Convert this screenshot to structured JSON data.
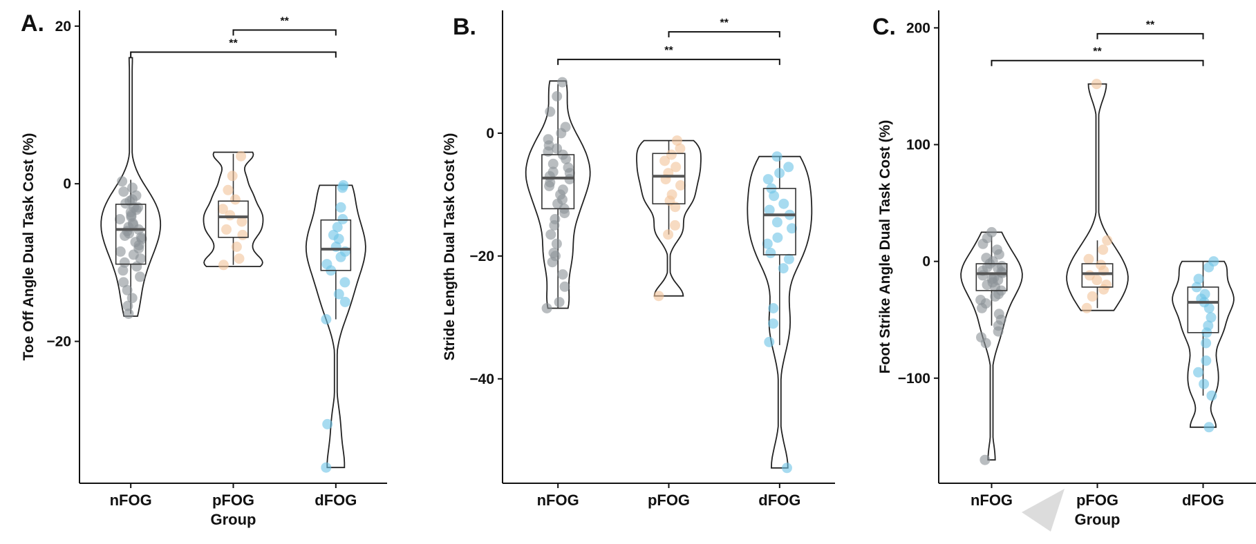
{
  "figure": {
    "description_title": ""
  },
  "chart_data": [
    {
      "panel": "A.",
      "type": "violin-box-strip",
      "title": "",
      "xlabel": "Group",
      "ylabel": "Toe Off Angle Dual Task Cost (%)",
      "ylim": [
        -38,
        22
      ],
      "yticks": [
        20,
        0,
        -20
      ],
      "ytick_labels": [
        "20",
        "0",
        "−20"
      ],
      "categories": [
        "nFOG",
        "pFOG",
        "dFOG"
      ],
      "colors": [
        "#8a9196",
        "#f2c39a",
        "#6cc3e6"
      ],
      "series": [
        {
          "name": "nFOG",
          "box": {
            "q1": -10.2,
            "median": -5.8,
            "q3": -2.6,
            "whisker_low": -16.5,
            "whisker_high": 0.5
          },
          "violin_min": -16.8,
          "violin_max": 16.0,
          "points": [
            -1.0,
            -1.5,
            -2.0,
            -2.2,
            -2.5,
            -3.0,
            -3.3,
            -3.6,
            -4.0,
            -4.2,
            -4.5,
            -5.0,
            -5.2,
            -5.5,
            -5.8,
            -6.0,
            -6.3,
            -6.6,
            -7.0,
            -7.4,
            -7.8,
            -8.2,
            -8.6,
            -9.0,
            -9.5,
            -10.0,
            -10.5,
            -11.0,
            -11.8,
            -12.5,
            -13.5,
            -14.5,
            -15.5,
            -16.5,
            -0.5,
            0.3,
            -3.0,
            -6.8
          ]
        },
        {
          "name": "pFOG",
          "box": {
            "q1": -6.8,
            "median": -4.2,
            "q3": -2.2,
            "whisker_low": -10.3,
            "whisker_high": 3.8
          },
          "violin_min": -10.5,
          "violin_max": 4.0,
          "points": [
            3.5,
            1.0,
            -0.8,
            -2.0,
            -3.2,
            -4.0,
            -4.8,
            -5.8,
            -6.5,
            -8.0,
            -9.5,
            -10.3
          ]
        },
        {
          "name": "dFOG",
          "box": {
            "q1": -11.0,
            "median": -8.3,
            "q3": -4.6,
            "whisker_low": -17.2,
            "whisker_high": -0.2
          },
          "violin_min": -36.0,
          "violin_max": -0.2,
          "points": [
            -0.2,
            -0.5,
            -3.0,
            -4.5,
            -5.5,
            -6.5,
            -7.0,
            -8.0,
            -8.6,
            -9.3,
            -10.2,
            -11.0,
            -12.5,
            -14.0,
            -15.0,
            -17.2,
            -30.5,
            -36.0
          ]
        }
      ],
      "significance": [
        {
          "from": "pFOG",
          "to": "dFOG",
          "label": "**",
          "y": 19.5
        },
        {
          "from": "nFOG",
          "to": "dFOG",
          "label": "**",
          "y": 16.7
        }
      ]
    },
    {
      "panel": "B.",
      "type": "violin-box-strip",
      "title": "",
      "xlabel": "",
      "ylabel": "Stride Length Dual Task Cost (%)",
      "ylim": [
        -57,
        20
      ],
      "yticks": [
        0,
        -20,
        -40
      ],
      "ytick_labels": [
        "0",
        "−20",
        "−40"
      ],
      "categories": [
        "nFOG",
        "pFOG",
        "dFOG"
      ],
      "colors": [
        "#8a9196",
        "#f2c39a",
        "#6cc3e6"
      ],
      "series": [
        {
          "name": "nFOG",
          "box": {
            "q1": -12.3,
            "median": -7.3,
            "q3": -3.5,
            "whisker_low": -28.5,
            "whisker_high": 8.0
          },
          "violin_min": -28.5,
          "violin_max": 8.5,
          "points": [
            8.3,
            6.0,
            3.5,
            1.0,
            0.0,
            -1.0,
            -2.0,
            -2.5,
            -3.0,
            -3.5,
            -4.2,
            -5.0,
            -5.6,
            -6.3,
            -7.0,
            -7.5,
            -8.0,
            -8.6,
            -9.2,
            -10.0,
            -10.8,
            -11.5,
            -12.3,
            -13.0,
            -14.0,
            -15.0,
            -16.5,
            -18.0,
            -19.5,
            -21.0,
            -23.0,
            -25.0,
            -27.5,
            -28.5,
            -20.0,
            -6.5
          ]
        },
        {
          "name": "pFOG",
          "box": {
            "q1": -11.5,
            "median": -7.0,
            "q3": -3.3,
            "whisker_low": -16.5,
            "whisker_high": -1.2
          },
          "violin_min": -26.5,
          "violin_max": -1.2,
          "points": [
            -1.2,
            -2.5,
            -3.5,
            -4.5,
            -5.5,
            -6.5,
            -7.5,
            -8.5,
            -10.0,
            -11.0,
            -12.0,
            -15.0,
            -16.5,
            -26.5
          ]
        },
        {
          "name": "dFOG",
          "box": {
            "q1": -19.8,
            "median": -13.3,
            "q3": -9.0,
            "whisker_low": -34.5,
            "whisker_high": -3.8
          },
          "violin_min": -54.5,
          "violin_max": -3.8,
          "points": [
            -3.8,
            -5.5,
            -6.5,
            -7.5,
            -9.0,
            -10.2,
            -11.5,
            -12.5,
            -13.3,
            -14.5,
            -15.5,
            -17.0,
            -18.0,
            -19.5,
            -20.5,
            -22.0,
            -28.5,
            -31.0,
            -34.0,
            -54.5
          ]
        }
      ],
      "significance": [
        {
          "from": "pFOG",
          "to": "dFOG",
          "label": "**",
          "y": 16.5
        },
        {
          "from": "nFOG",
          "to": "dFOG",
          "label": "**",
          "y": 12.0
        }
      ]
    },
    {
      "panel": "C.",
      "type": "violin-box-strip",
      "title": "",
      "xlabel": "Group",
      "ylabel": "Foot Strike Angle Dual Task Cost (%)",
      "ylim": [
        -190,
        215
      ],
      "yticks": [
        200,
        100,
        0,
        -100
      ],
      "ytick_labels": [
        "200",
        "100",
        "0",
        "−100"
      ],
      "categories": [
        "nFOG",
        "pFOG",
        "dFOG"
      ],
      "colors": [
        "#8a9196",
        "#f2c39a",
        "#6cc3e6"
      ],
      "series": [
        {
          "name": "nFOG",
          "box": {
            "q1": -25.0,
            "median": -10.5,
            "q3": -2.0,
            "whisker_low": -55.0,
            "whisker_high": 22.0
          },
          "violin_min": -170.0,
          "violin_max": 25.0,
          "points": [
            25,
            20,
            15,
            10,
            6,
            3,
            0,
            -2,
            -4,
            -6,
            -8,
            -10,
            -12,
            -14,
            -16,
            -18,
            -20,
            -22,
            -25,
            -28,
            -30,
            -33,
            -36,
            -40,
            -45,
            -50,
            -55,
            -60,
            -65,
            -70,
            -5,
            -15,
            -9,
            -170
          ]
        },
        {
          "name": "pFOG",
          "box": {
            "q1": -22.0,
            "median": -10.5,
            "q3": -2.0,
            "whisker_low": -40.0,
            "whisker_high": 18.0
          },
          "violin_min": -42.0,
          "violin_max": 152.0,
          "points": [
            152,
            18,
            10,
            2,
            -3,
            -8,
            -12,
            -16,
            -20,
            -24,
            -30,
            -40
          ]
        },
        {
          "name": "dFOG",
          "box": {
            "q1": -61.0,
            "median": -35.0,
            "q3": -22.0,
            "whisker_low": -115.0,
            "whisker_high": 0.0
          },
          "violin_min": -142.0,
          "violin_max": 0.0,
          "points": [
            0,
            -5,
            -15,
            -22,
            -28,
            -32,
            -35,
            -40,
            -48,
            -55,
            -61,
            -70,
            -85,
            -95,
            -105,
            -115,
            -142
          ]
        }
      ],
      "significance": [
        {
          "from": "pFOG",
          "to": "dFOG",
          "label": "**",
          "y": 195
        },
        {
          "from": "nFOG",
          "to": "dFOG",
          "label": "**",
          "y": 172
        }
      ]
    }
  ]
}
